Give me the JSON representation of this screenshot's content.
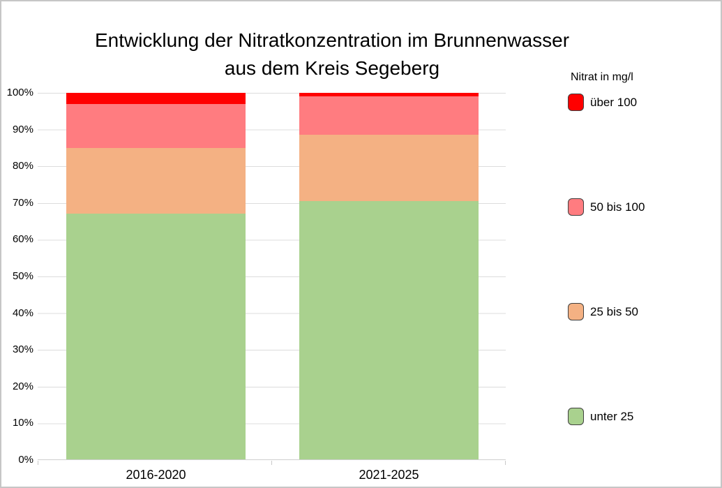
{
  "chart_data": {
    "type": "bar",
    "stacked": true,
    "title": "Entwicklung der Nitratkonzentration im Brunnenwasser aus dem Kreis Segeberg",
    "title_lines": [
      "Entwicklung der Nitratkonzentration im Brunnenwasser",
      "aus dem Kreis Segeberg"
    ],
    "categories": [
      "2016-2020",
      "2021-2025"
    ],
    "series": [
      {
        "name": "unter 25",
        "color": "#A9D18E",
        "values": [
          67,
          70.5
        ]
      },
      {
        "name": "25 bis 50",
        "color": "#F4B183",
        "values": [
          18,
          18
        ]
      },
      {
        "name": "50 bis 100",
        "color": "#FF7C80",
        "values": [
          12,
          10.5
        ]
      },
      {
        "name": "über 100",
        "color": "#FF0000",
        "values": [
          3,
          1
        ]
      }
    ],
    "value_unit": "percent of wells",
    "ylabel": "",
    "xlabel": "",
    "ylim": [
      0,
      100
    ],
    "yticks": [
      "0%",
      "10%",
      "20%",
      "30%",
      "40%",
      "50%",
      "60%",
      "70%",
      "80%",
      "90%",
      "100%"
    ],
    "grid": true,
    "gridline_color": "#DCDCDC",
    "axis_line_color": "#CFCFCF",
    "legend_title": "Nitrat in mg/l",
    "legend_position": "right",
    "legend_order_top_to_bottom": [
      "über 100",
      "50 bis 100",
      "25 bis 50",
      "unter 25"
    ]
  }
}
